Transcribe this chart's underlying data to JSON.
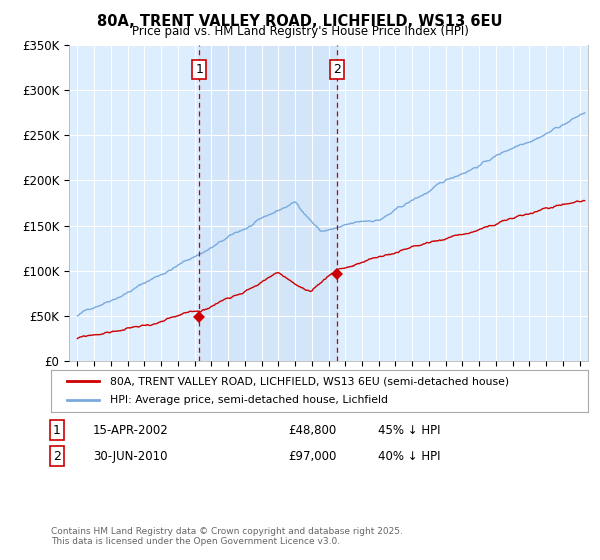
{
  "title": "80A, TRENT VALLEY ROAD, LICHFIELD, WS13 6EU",
  "subtitle": "Price paid vs. HM Land Registry's House Price Index (HPI)",
  "ylabel_ticks": [
    "£0",
    "£50K",
    "£100K",
    "£150K",
    "£200K",
    "£250K",
    "£300K",
    "£350K"
  ],
  "ylim": [
    0,
    350000
  ],
  "xlim_start": 1994.5,
  "xlim_end": 2025.5,
  "legend_line1": "80A, TRENT VALLEY ROAD, LICHFIELD, WS13 6EU (semi-detached house)",
  "legend_line2": "HPI: Average price, semi-detached house, Lichfield",
  "sale1_label": "1",
  "sale1_date": "15-APR-2002",
  "sale1_price": "£48,800",
  "sale1_hpi": "45% ↓ HPI",
  "sale1_x": 2002.29,
  "sale1_y": 48800,
  "sale2_label": "2",
  "sale2_date": "30-JUN-2010",
  "sale2_price": "£97,000",
  "sale2_hpi": "40% ↓ HPI",
  "sale2_x": 2010.5,
  "sale2_y": 97000,
  "red_color": "#cc0000",
  "blue_color": "#7aaadd",
  "shade_color": "#ddeeff",
  "background_color": "#ddeeff",
  "grid_color": "#ffffff",
  "vline_color": "#cc0000",
  "footnote": "Contains HM Land Registry data © Crown copyright and database right 2025.\nThis data is licensed under the Open Government Licence v3.0."
}
